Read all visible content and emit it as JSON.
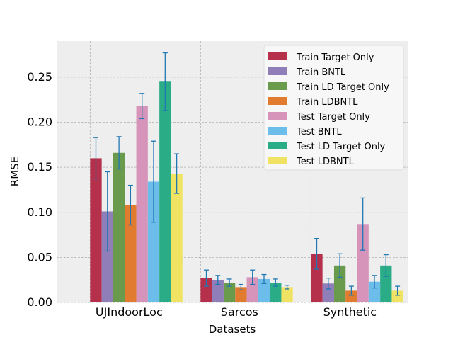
{
  "chart_data": {
    "type": "bar",
    "title": "",
    "xlabel": "Datasets",
    "ylabel": "RMSE",
    "ylim": [
      0,
      0.29
    ],
    "yticks": [
      0.0,
      0.05,
      0.1,
      0.15,
      0.2,
      0.25
    ],
    "ytick_labels": [
      "0.00",
      "0.05",
      "0.10",
      "0.15",
      "0.20",
      "0.25"
    ],
    "grid": true,
    "legend_position": "top-right",
    "categories": [
      "UJIndoorLoc",
      "Sarcos",
      "Synthetic"
    ],
    "series": [
      {
        "name": "Train Target Only",
        "color": "#b5304b",
        "values": [
          0.16,
          0.027,
          0.054
        ],
        "errors": [
          0.023,
          0.009,
          0.017
        ]
      },
      {
        "name": "Train BNTL",
        "color": "#8f7eb7",
        "values": [
          0.101,
          0.025,
          0.021
        ],
        "errors": [
          0.044,
          0.005,
          0.006
        ]
      },
      {
        "name": "Train LD Target Only",
        "color": "#6a9a4c",
        "values": [
          0.166,
          0.022,
          0.041
        ],
        "errors": [
          0.018,
          0.004,
          0.013
        ]
      },
      {
        "name": "Train LDBNTL",
        "color": "#e07b30",
        "values": [
          0.108,
          0.017,
          0.013
        ],
        "errors": [
          0.022,
          0.003,
          0.005
        ]
      },
      {
        "name": "Test Target Only",
        "color": "#d694bb",
        "values": [
          0.218,
          0.028,
          0.087
        ],
        "errors": [
          0.014,
          0.008,
          0.029
        ]
      },
      {
        "name": "Test BNTL",
        "color": "#6cbde9",
        "values": [
          0.134,
          0.026,
          0.023
        ],
        "errors": [
          0.045,
          0.005,
          0.007
        ]
      },
      {
        "name": "Test LD Target Only",
        "color": "#2aac87",
        "values": [
          0.245,
          0.022,
          0.041
        ],
        "errors": [
          0.032,
          0.004,
          0.012
        ]
      },
      {
        "name": "Test LDBNTL",
        "color": "#f0e363",
        "values": [
          0.143,
          0.017,
          0.013
        ],
        "errors": [
          0.022,
          0.002,
          0.005
        ]
      }
    ],
    "error_bar_color": "#1f77b4",
    "plot_background": "#eeeeee",
    "grid_color": "#b0b0b0"
  }
}
